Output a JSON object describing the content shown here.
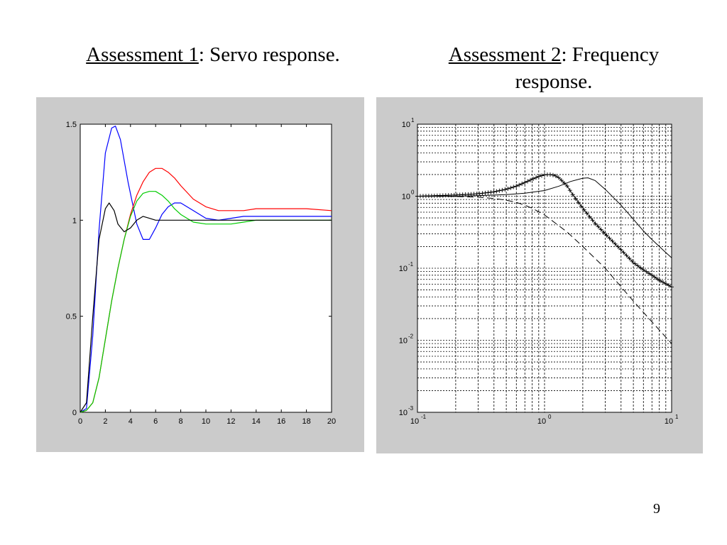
{
  "titles": [
    {
      "underlined": "Assessment 1",
      "rest": ": Servo response."
    },
    {
      "underlined": "Assessment 2",
      "rest": ": Frequency",
      "rest2": "response."
    }
  ],
  "page_number": "9",
  "chart_data": [
    {
      "type": "line",
      "title": "",
      "xlabel": "",
      "ylabel": "",
      "xlim": [
        0,
        20
      ],
      "ylim": [
        0,
        1.5
      ],
      "x_ticks": [
        "0",
        "2",
        "4",
        "6",
        "8",
        "10",
        "12",
        "14",
        "16",
        "18",
        "20"
      ],
      "y_ticks": [
        "0",
        "0.5",
        "1",
        "1.5"
      ],
      "grid": false,
      "series": [
        {
          "color": "#0000ff",
          "x": [
            0,
            0.5,
            1,
            1.5,
            2,
            2.5,
            2.8,
            3.2,
            3.8,
            4.5,
            5,
            5.5,
            6,
            6.5,
            7,
            7.5,
            8,
            9,
            10,
            11,
            12,
            13,
            14,
            16,
            18,
            20
          ],
          "y": [
            0,
            0.02,
            0.4,
            0.95,
            1.35,
            1.48,
            1.49,
            1.42,
            1.2,
            0.98,
            0.9,
            0.9,
            0.96,
            1.03,
            1.07,
            1.09,
            1.09,
            1.05,
            1.01,
            1.0,
            1.01,
            1.02,
            1.02,
            1.02,
            1.02,
            1.02
          ]
        },
        {
          "color": "#ff0000",
          "x": [
            0,
            0.5,
            1,
            1.5,
            2,
            2.5,
            3,
            3.5,
            4,
            4.5,
            5,
            5.5,
            6,
            6.5,
            7,
            7.5,
            8,
            9,
            10,
            11,
            12,
            13,
            14,
            16,
            18,
            20
          ],
          "y": [
            0,
            0.01,
            0.05,
            0.18,
            0.38,
            0.58,
            0.75,
            0.9,
            1.03,
            1.13,
            1.2,
            1.25,
            1.27,
            1.27,
            1.25,
            1.22,
            1.18,
            1.11,
            1.07,
            1.05,
            1.05,
            1.05,
            1.06,
            1.06,
            1.06,
            1.05
          ]
        },
        {
          "color": "#00cc00",
          "x": [
            0,
            0.5,
            1,
            1.5,
            2,
            2.5,
            3,
            3.5,
            4,
            4.5,
            5,
            5.5,
            6,
            6.5,
            7,
            7.5,
            8,
            9,
            10,
            11,
            12,
            13,
            14,
            16,
            18,
            20
          ],
          "y": [
            0,
            0.01,
            0.05,
            0.18,
            0.38,
            0.58,
            0.75,
            0.9,
            1.02,
            1.1,
            1.14,
            1.15,
            1.15,
            1.13,
            1.1,
            1.06,
            1.03,
            0.99,
            0.98,
            0.98,
            0.98,
            0.99,
            1.0,
            1.0,
            1.0,
            1.0
          ]
        },
        {
          "color": "#000000",
          "x": [
            0,
            0.5,
            1,
            1.5,
            2,
            2.3,
            2.7,
            3,
            3.5,
            4,
            4.5,
            5,
            5.5,
            6,
            7,
            8,
            9,
            10,
            12,
            14,
            16,
            18,
            20
          ],
          "y": [
            0,
            0.05,
            0.5,
            0.9,
            1.06,
            1.09,
            1.05,
            0.98,
            0.94,
            0.96,
            1.0,
            1.02,
            1.01,
            1.0,
            1.0,
            1.0,
            1.0,
            1.0,
            1.0,
            1.0,
            1.0,
            1.0,
            1.0
          ]
        }
      ]
    },
    {
      "type": "line",
      "title": "",
      "xlabel": "",
      "ylabel": "",
      "x_scale": "log",
      "y_scale": "log",
      "xlim": [
        0.1,
        10
      ],
      "ylim": [
        0.001,
        10
      ],
      "x_ticks": [
        {
          "base": "10",
          "exp": "-1"
        },
        {
          "base": "10",
          "exp": "0"
        },
        {
          "base": "10",
          "exp": "1"
        }
      ],
      "y_ticks": [
        {
          "base": "10",
          "exp": "-3"
        },
        {
          "base": "10",
          "exp": "-2"
        },
        {
          "base": "10",
          "exp": "-1"
        },
        {
          "base": "10",
          "exp": "0"
        },
        {
          "base": "10",
          "exp": "1"
        }
      ],
      "grid": true,
      "series": [
        {
          "style": "plus-markers",
          "color": "#000000",
          "x": [
            0.1,
            0.15,
            0.2,
            0.3,
            0.4,
            0.5,
            0.6,
            0.7,
            0.8,
            0.9,
            1.0,
            1.1,
            1.2,
            1.3,
            1.5,
            1.7,
            2,
            2.5,
            3,
            4,
            5,
            6,
            7,
            8,
            9,
            10
          ],
          "y": [
            1.0,
            1.02,
            1.04,
            1.08,
            1.15,
            1.25,
            1.38,
            1.55,
            1.72,
            1.88,
            1.98,
            2.0,
            1.95,
            1.8,
            1.4,
            1.0,
            0.68,
            0.42,
            0.3,
            0.18,
            0.12,
            0.095,
            0.08,
            0.068,
            0.061,
            0.055
          ]
        },
        {
          "style": "solid",
          "color": "#000000",
          "x": [
            0.1,
            0.2,
            0.3,
            0.5,
            0.7,
            1.0,
            1.3,
            1.6,
            2.0,
            2.2,
            2.5,
            3,
            4,
            5,
            6,
            7,
            8,
            9,
            10
          ],
          "y": [
            1.0,
            1.0,
            1.02,
            1.05,
            1.1,
            1.2,
            1.38,
            1.6,
            1.78,
            1.8,
            1.65,
            1.25,
            0.75,
            0.48,
            0.33,
            0.25,
            0.2,
            0.165,
            0.14
          ]
        },
        {
          "style": "dashed",
          "color": "#000000",
          "x": [
            0.1,
            0.2,
            0.3,
            0.4,
            0.5,
            0.6,
            0.7,
            0.8,
            1.0,
            1.5,
            2,
            3,
            5,
            7,
            10
          ],
          "y": [
            1.0,
            0.99,
            0.97,
            0.93,
            0.88,
            0.82,
            0.75,
            0.68,
            0.55,
            0.32,
            0.2,
            0.1,
            0.035,
            0.018,
            0.009
          ]
        }
      ]
    }
  ]
}
